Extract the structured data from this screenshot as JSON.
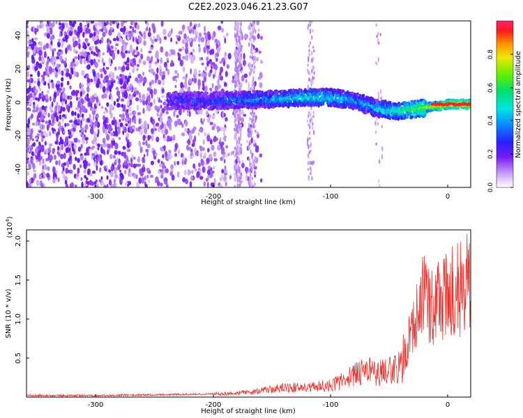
{
  "title": "C2E2.2023.046.21.23.G07",
  "chart_data": [
    {
      "type": "heatmap",
      "xlabel": "Height of straight line (km)",
      "ylabel": "Frequency (Hz)",
      "xlim": [
        -360,
        18
      ],
      "ylim": [
        -50,
        50
      ],
      "xticks": [
        "-300",
        "-200",
        "-100",
        "0"
      ],
      "yticks": [
        "-40",
        "-20",
        "0",
        "20",
        "40"
      ],
      "colorbar": {
        "label": "Normalized spectral amplitude",
        "range": [
          0.0,
          1.0
        ],
        "ticks": [
          "0.0",
          "0.2",
          "0.4",
          "0.6",
          "0.8"
        ]
      },
      "ridge": {
        "x": [
          -240,
          -200,
          -150,
          -120,
          -100,
          -80,
          -60,
          -40,
          -20,
          0,
          18
        ],
        "freq": [
          2,
          2,
          3,
          4,
          4,
          2,
          -3,
          -4,
          -2,
          0,
          0
        ],
        "amplitude": [
          0.25,
          0.3,
          0.4,
          0.5,
          0.45,
          0.4,
          0.45,
          0.55,
          0.7,
          0.95,
          0.95
        ]
      }
    },
    {
      "type": "line",
      "xlabel": "Height of straight line (km)",
      "ylabel": "SNR (10 * v/v)",
      "scale_label": "(x10",
      "scale_exp": "4",
      "scale_close": ")",
      "xlim": [
        -360,
        18
      ],
      "ylim": [
        0,
        2.15
      ],
      "xticks": [
        "-300",
        "-200",
        "-100",
        "0"
      ],
      "yticks": [
        "0.5",
        "1.0",
        "1.5",
        "2.0"
      ],
      "line_color": "#e8332e",
      "series": [
        {
          "x": [
            -360,
            -300,
            -250,
            -200,
            -180,
            -160,
            -140,
            -120,
            -100,
            -90,
            -80,
            -70,
            -60,
            -50,
            -40,
            -35,
            -30,
            -25,
            -20,
            -15,
            -10,
            -5,
            0,
            5,
            10,
            18
          ],
          "y": [
            0.02,
            0.02,
            0.03,
            0.04,
            0.05,
            0.08,
            0.12,
            0.12,
            0.15,
            0.22,
            0.3,
            0.35,
            0.3,
            0.35,
            0.4,
            0.7,
            1.0,
            1.25,
            1.3,
            1.2,
            1.25,
            1.3,
            1.35,
            1.4,
            1.4,
            1.6
          ]
        }
      ]
    }
  ]
}
